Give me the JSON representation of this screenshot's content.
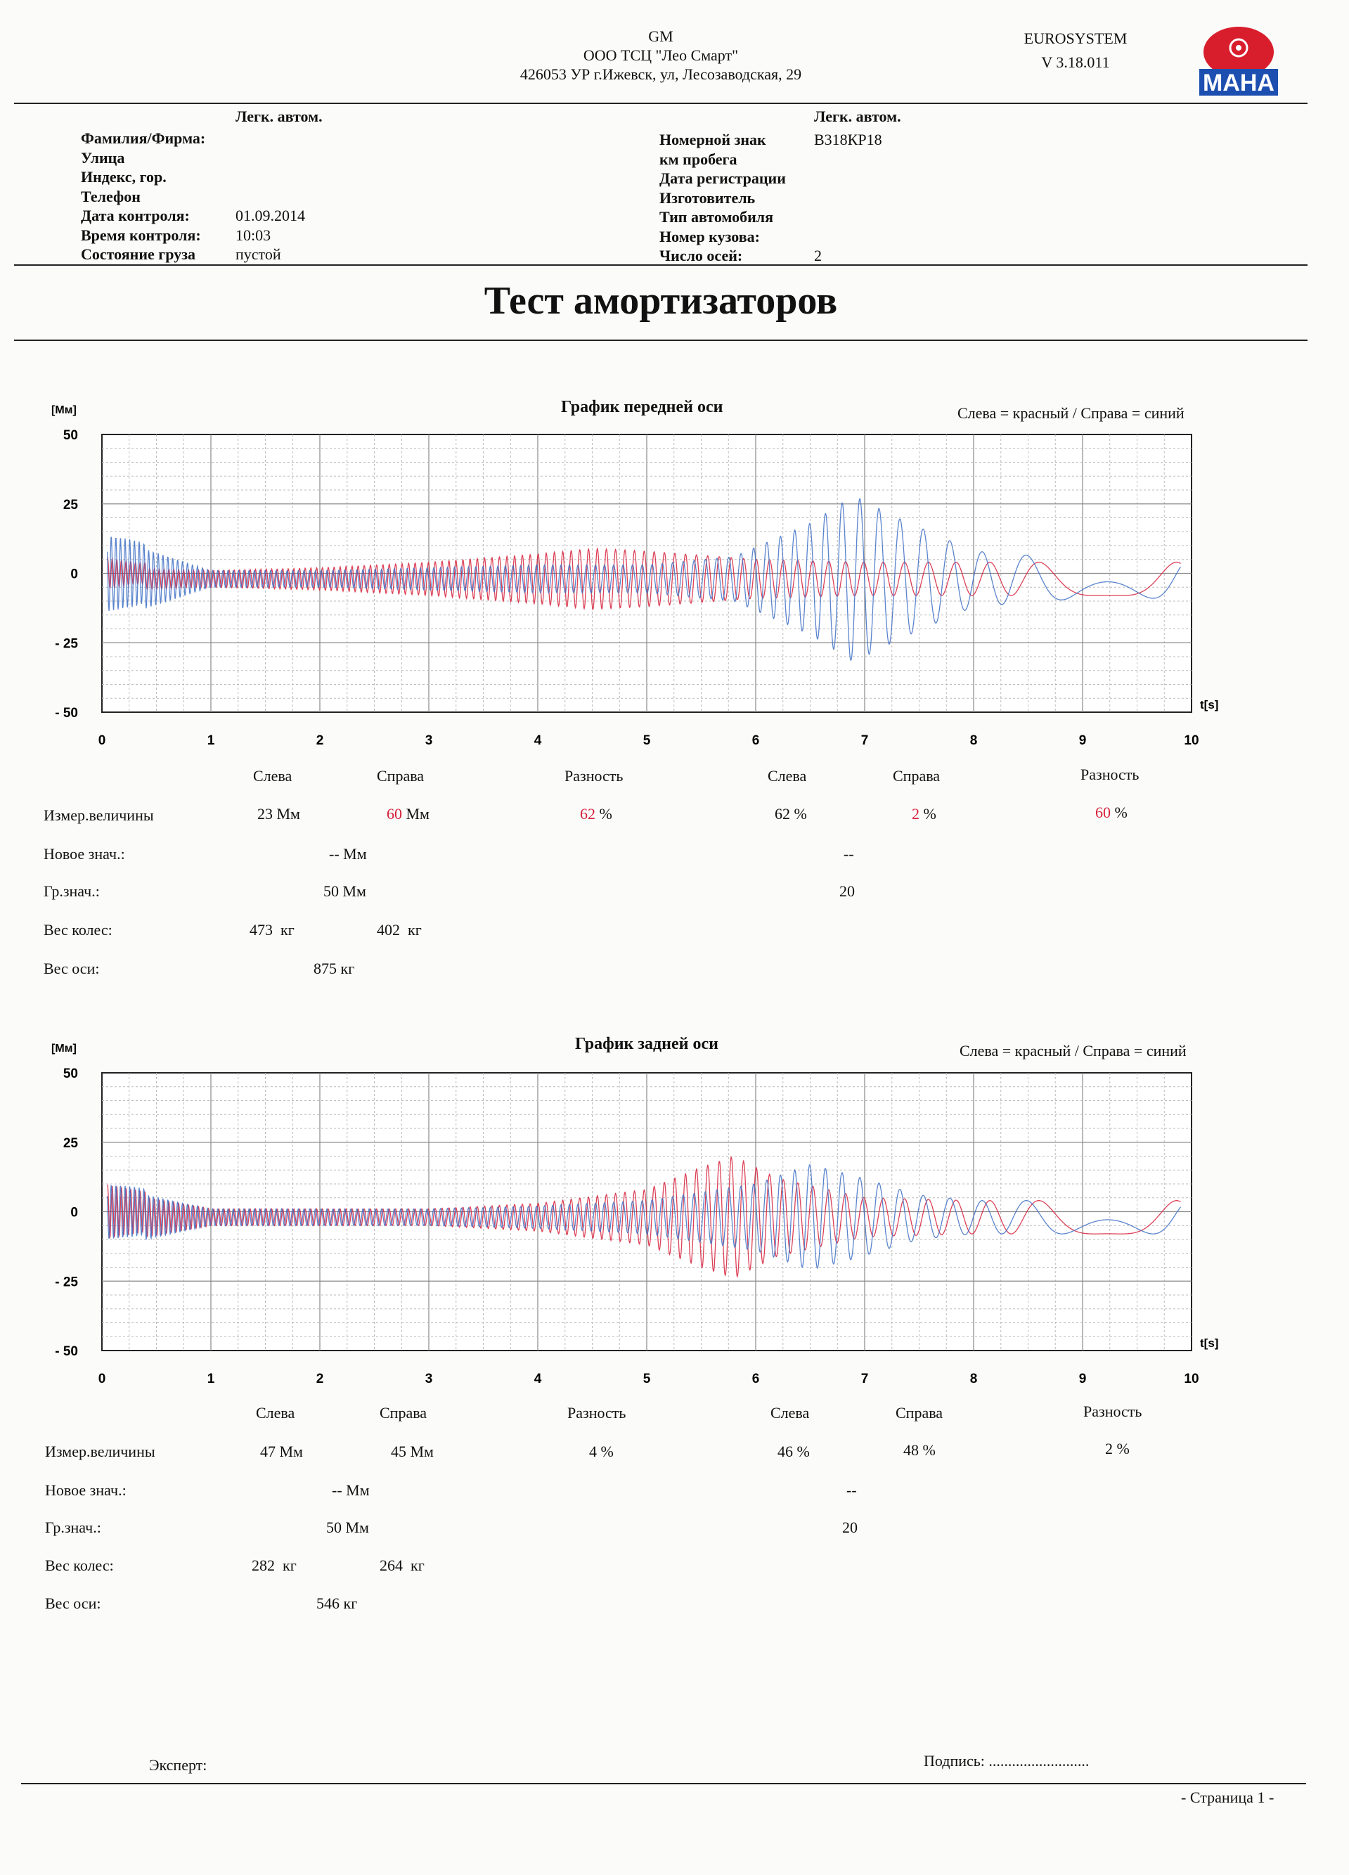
{
  "header": {
    "org": [
      "GM",
      "ООО ТСЦ \"Лео Смарт\"",
      "426053 УР г.Ижевск, ул, Лесозаводская, 29"
    ],
    "system": "EUROSYSTEM",
    "version": "V 3.18.011",
    "logo_text": "MAHA",
    "colors": {
      "logo_red": "#d81e2c",
      "logo_blue": "#1d4fb0"
    }
  },
  "info_left": {
    "category": "Легк. автом.",
    "rows": [
      {
        "label": "Фамилия/Фирма:",
        "value": ""
      },
      {
        "label": "Улица",
        "value": ""
      },
      {
        "label": "Индекс, гор.",
        "value": ""
      },
      {
        "label": "Телефон",
        "value": ""
      },
      {
        "label": "Дата контроля:",
        "value": "01.09.2014"
      },
      {
        "label": "Время контроля:",
        "value": "10:03"
      },
      {
        "label": "Состояние груза",
        "value": "пустой"
      }
    ]
  },
  "info_right": {
    "category": "Легк. автом.",
    "rows": [
      {
        "label": "Номерной знак",
        "value": "В318КР18"
      },
      {
        "label": "км пробега",
        "value": ""
      },
      {
        "label": "Дата регистрации",
        "value": ""
      },
      {
        "label": "Изготовитель",
        "value": ""
      },
      {
        "label": "Тип автомобиля",
        "value": ""
      },
      {
        "label": "Номер кузова:",
        "value": ""
      },
      {
        "label": "Число осей:",
        "value": "2"
      }
    ]
  },
  "title": "Тест амортизаторов",
  "front": {
    "chart_data": {
      "type": "line",
      "title": "График передней оси",
      "legend": "Слева = красный / Справа = синий",
      "ylabel": "[Мм]",
      "xlabel": "t[s]",
      "xlim": [
        0,
        10
      ],
      "ylim": [
        -50,
        50
      ],
      "yticks": [
        "50",
        "25",
        "0",
        "- 25",
        "- 50"
      ],
      "xticks": [
        "0",
        "1",
        "2",
        "3",
        "4",
        "5",
        "6",
        "7",
        "8",
        "9",
        "10"
      ],
      "grid": true,
      "series": [
        {
          "color": "#d6203a",
          "envelope": [
            [
              0,
              6
            ],
            [
              0.3,
              4
            ],
            [
              1,
              3
            ],
            [
              2,
              4
            ],
            [
              3,
              6
            ],
            [
              4,
              9
            ],
            [
              4.5,
              11
            ],
            [
              5,
              10
            ],
            [
              6,
              7
            ],
            [
              7,
              6
            ],
            [
              8,
              6
            ],
            [
              10,
              6
            ]
          ]
        },
        {
          "color": "#3d6fc4",
          "envelope": [
            [
              0,
              14
            ],
            [
              0.3,
              12
            ],
            [
              1,
              3
            ],
            [
              2,
              3
            ],
            [
              3,
              4
            ],
            [
              4,
              5
            ],
            [
              5,
              5
            ],
            [
              5.8,
              8
            ],
            [
              6.5,
              20
            ],
            [
              6.9,
              30
            ],
            [
              7.3,
              22
            ],
            [
              8,
              10
            ],
            [
              9,
              7
            ],
            [
              10,
              7
            ]
          ]
        }
      ]
    },
    "col_headers": [
      "Слева",
      "Справа",
      "Разность",
      "Слева",
      "Справа",
      "Разность"
    ],
    "measured": {
      "label": "Измер.величины",
      "left": "23",
      "right": "60",
      "diff": "62",
      "unit_mm": "Мм",
      "left_pct": "62",
      "right_pct": "2",
      "diff_pct": "60",
      "pct": "%"
    },
    "new_value": {
      "label": "Новое знач.:",
      "value": "-- Мм",
      "value2": "--"
    },
    "limit": {
      "label": "Гр.знач.:",
      "value": "50 Мм",
      "value2": "20"
    },
    "wheel_weight": {
      "label": "Вес колес:",
      "left": "473",
      "right": "402",
      "unit": "кг"
    },
    "axle_weight": {
      "label": "Вес оси:",
      "value": "875",
      "unit": "кг"
    }
  },
  "rear": {
    "chart_data": {
      "type": "line",
      "title": "График задней оси",
      "legend": "Слева = красный / Справа = синий",
      "ylabel": "[Мм]",
      "xlabel": "t[s]",
      "xlim": [
        0,
        10
      ],
      "ylim": [
        -50,
        50
      ],
      "yticks": [
        "50",
        "25",
        "0",
        "- 25",
        "- 50"
      ],
      "xticks": [
        "0",
        "1",
        "2",
        "3",
        "4",
        "5",
        "6",
        "7",
        "8",
        "9",
        "10"
      ],
      "grid": true,
      "series": [
        {
          "color": "#d6203a",
          "envelope": [
            [
              0,
              10
            ],
            [
              0.3,
              8
            ],
            [
              1,
              3
            ],
            [
              2,
              3
            ],
            [
              3,
              3
            ],
            [
              4,
              5
            ],
            [
              5,
              10
            ],
            [
              5.5,
              18
            ],
            [
              5.8,
              22
            ],
            [
              6.2,
              14
            ],
            [
              7,
              7
            ],
            [
              8,
              6
            ],
            [
              10,
              6
            ]
          ]
        },
        {
          "color": "#3d6fc4",
          "envelope": [
            [
              0,
              10
            ],
            [
              0.3,
              9
            ],
            [
              1,
              3
            ],
            [
              2,
              3
            ],
            [
              3,
              3
            ],
            [
              4,
              4
            ],
            [
              5,
              6
            ],
            [
              6,
              12
            ],
            [
              6.5,
              19
            ],
            [
              6.9,
              15
            ],
            [
              7.5,
              8
            ],
            [
              8,
              6
            ],
            [
              10,
              6
            ]
          ]
        }
      ]
    },
    "col_headers": [
      "Слева",
      "Справа",
      "Разность",
      "Слева",
      "Справа",
      "Разность"
    ],
    "measured": {
      "label": "Измер.величины",
      "left": "47",
      "right": "45",
      "diff": "4",
      "unit_mm": "Мм",
      "left_pct": "46",
      "right_pct": "48",
      "diff_pct": "2",
      "pct": "%"
    },
    "new_value": {
      "label": "Новое знач.:",
      "value": "-- Мм",
      "value2": "--"
    },
    "limit": {
      "label": "Гр.знач.:",
      "value": "50 Мм",
      "value2": "20"
    },
    "wheel_weight": {
      "label": "Вес колес:",
      "left": "282",
      "right": "264",
      "unit": "кг"
    },
    "axle_weight": {
      "label": "Вес оси:",
      "value": "546",
      "unit": "кг"
    }
  },
  "footer": {
    "expert": "Эксперт:",
    "signature": "Подпись: ..........................",
    "page": "- Страница 1 -"
  }
}
